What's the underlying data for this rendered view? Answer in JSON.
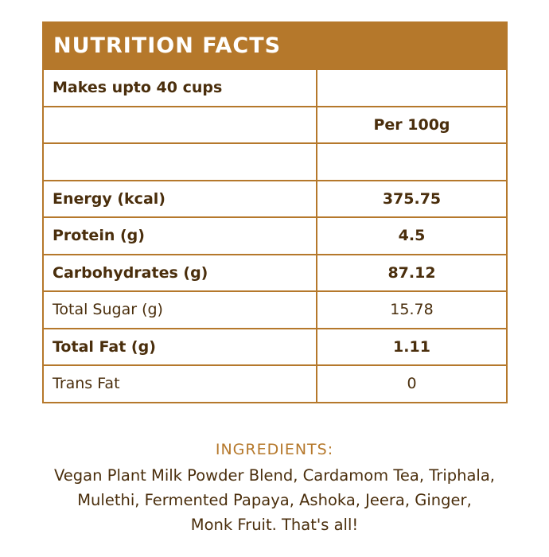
{
  "header": {
    "title": "NUTRITION FACTS"
  },
  "table": {
    "rows": [
      {
        "cells": [
          "Makes upto 40 cups",
          ""
        ],
        "bold": true
      },
      {
        "cells": [
          "",
          "Per 100g"
        ],
        "bold": true
      },
      {
        "cells": [
          "",
          ""
        ],
        "bold": false
      },
      {
        "cells": [
          "Energy (kcal)",
          "375.75"
        ],
        "bold": true
      },
      {
        "cells": [
          "Protein (g)",
          "4.5"
        ],
        "bold": true
      },
      {
        "cells": [
          "Carbohydrates (g)",
          "87.12"
        ],
        "bold": true
      },
      {
        "cells": [
          "Total Sugar (g)",
          "15.78"
        ],
        "bold": false
      },
      {
        "cells": [
          "Total Fat (g)",
          "1.11"
        ],
        "bold": true
      },
      {
        "cells": [
          "Trans Fat",
          "0"
        ],
        "bold": false
      }
    ]
  },
  "ingredients": {
    "title": "INGREDIENTS:",
    "lines": [
      "Vegan Plant Milk Powder Blend, Cardamom Tea, Triphala,",
      "Mulethi, Fermented Papaya, Ashoka, Jeera, Ginger,",
      "Monk Fruit. That's all!"
    ]
  }
}
